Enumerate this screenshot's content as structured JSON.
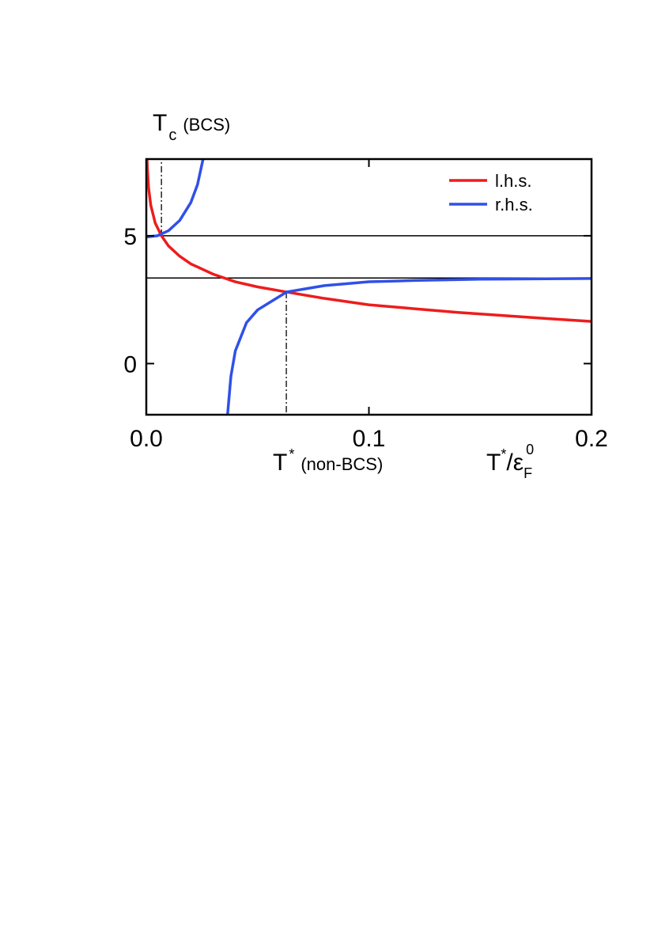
{
  "chart_data": {
    "type": "line",
    "y_label": {
      "main": "T",
      "sub": "c",
      "note": "(BCS)"
    },
    "x_annotation": {
      "main": "T",
      "sup": "*",
      "note": "(non-BCS)"
    },
    "x_label": {
      "main": "T",
      "sup": "*",
      "slash": "/",
      "eps": "ε",
      "sub": "F",
      "sup2": "0"
    },
    "xlim": [
      0,
      0.2
    ],
    "ylim": [
      -2,
      8
    ],
    "xticks": [
      {
        "value": 0,
        "label": "0.0"
      },
      0.1,
      0.2
    ],
    "yticks": [
      0,
      5
    ],
    "legend": "top-right",
    "hlines": [
      5,
      3.35
    ],
    "vlines": [
      {
        "x": 0.0068,
        "y": 5,
        "toward": "top"
      },
      {
        "x": 0.0629,
        "y": 2.8,
        "toward": "bottom"
      }
    ],
    "series": [
      {
        "name": "l.h.s.",
        "color": "#ee1c1c",
        "x": [
          0.0003,
          0.0005,
          0.001,
          0.002,
          0.004,
          0.0068,
          0.01,
          0.015,
          0.02,
          0.03,
          0.04,
          0.05,
          0.063,
          0.08,
          0.1,
          0.12,
          0.14,
          0.16,
          0.18,
          0.2
        ],
        "values": [
          8.1,
          7.6,
          6.9,
          6.2,
          5.5,
          5.0,
          4.6,
          4.2,
          3.9,
          3.5,
          3.2,
          3.0,
          2.8,
          2.55,
          2.3,
          2.15,
          2.0,
          1.88,
          1.76,
          1.65
        ]
      },
      {
        "name": "r.h.s.",
        "color": "#3050e8",
        "x": [
          0,
          0.005,
          0.01,
          0.015,
          0.02,
          0.023,
          0.0255,
          0.03,
          0.0365,
          0.038,
          0.04,
          0.045,
          0.05,
          0.063,
          0.08,
          0.1,
          0.12,
          0.15,
          0.2
        ],
        "values": [
          4.95,
          5.0,
          5.2,
          5.6,
          6.3,
          7.0,
          8.0,
          null,
          -2,
          -0.5,
          0.5,
          1.6,
          2.1,
          2.8,
          3.05,
          3.2,
          3.25,
          3.3,
          3.33
        ]
      }
    ]
  }
}
